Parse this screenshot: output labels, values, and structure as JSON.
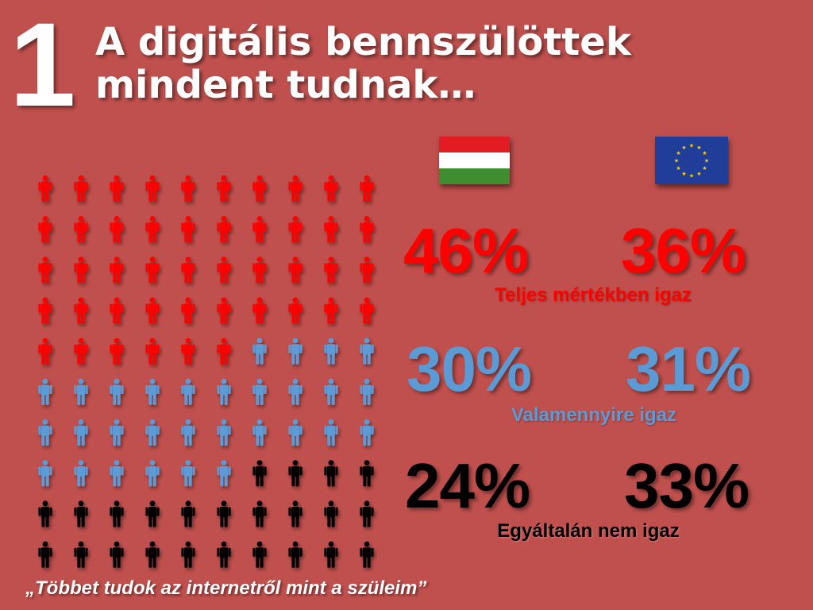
{
  "slide": {
    "number": "1",
    "title_line1": "A digitális bennszülöttek",
    "title_line2": "mindent tudnak…",
    "quote": "„Többet tudok az internetről mint a szüleim”"
  },
  "flags": {
    "hungary": {
      "icon": "hungary-flag-icon",
      "colors": [
        "#e31b23",
        "#ffffff",
        "#3e8d2f"
      ]
    },
    "eu": {
      "icon": "eu-flag-icon",
      "colors": [
        "#1f3d99",
        "#ffd400"
      ]
    }
  },
  "chart_data": {
    "type": "pictogram",
    "units_total": 100,
    "groups": [
      "Hungary",
      "EU"
    ],
    "categories": [
      {
        "label": "Teljes mértékben igaz",
        "hu": "46%",
        "eu": "36%",
        "hu_value": 46,
        "eu_value": 36,
        "color": "#ff0000"
      },
      {
        "label": "Valamennyire igaz",
        "hu": "30%",
        "eu": "31%",
        "hu_value": 30,
        "eu_value": 31,
        "color": "#5b9bd5"
      },
      {
        "label": "Egyáltalán nem igaz",
        "hu": "24%",
        "eu": "33%",
        "hu_value": 24,
        "eu_value": 33,
        "color": "#000000"
      }
    ],
    "pictogram_counts": [
      46,
      30,
      24
    ]
  }
}
